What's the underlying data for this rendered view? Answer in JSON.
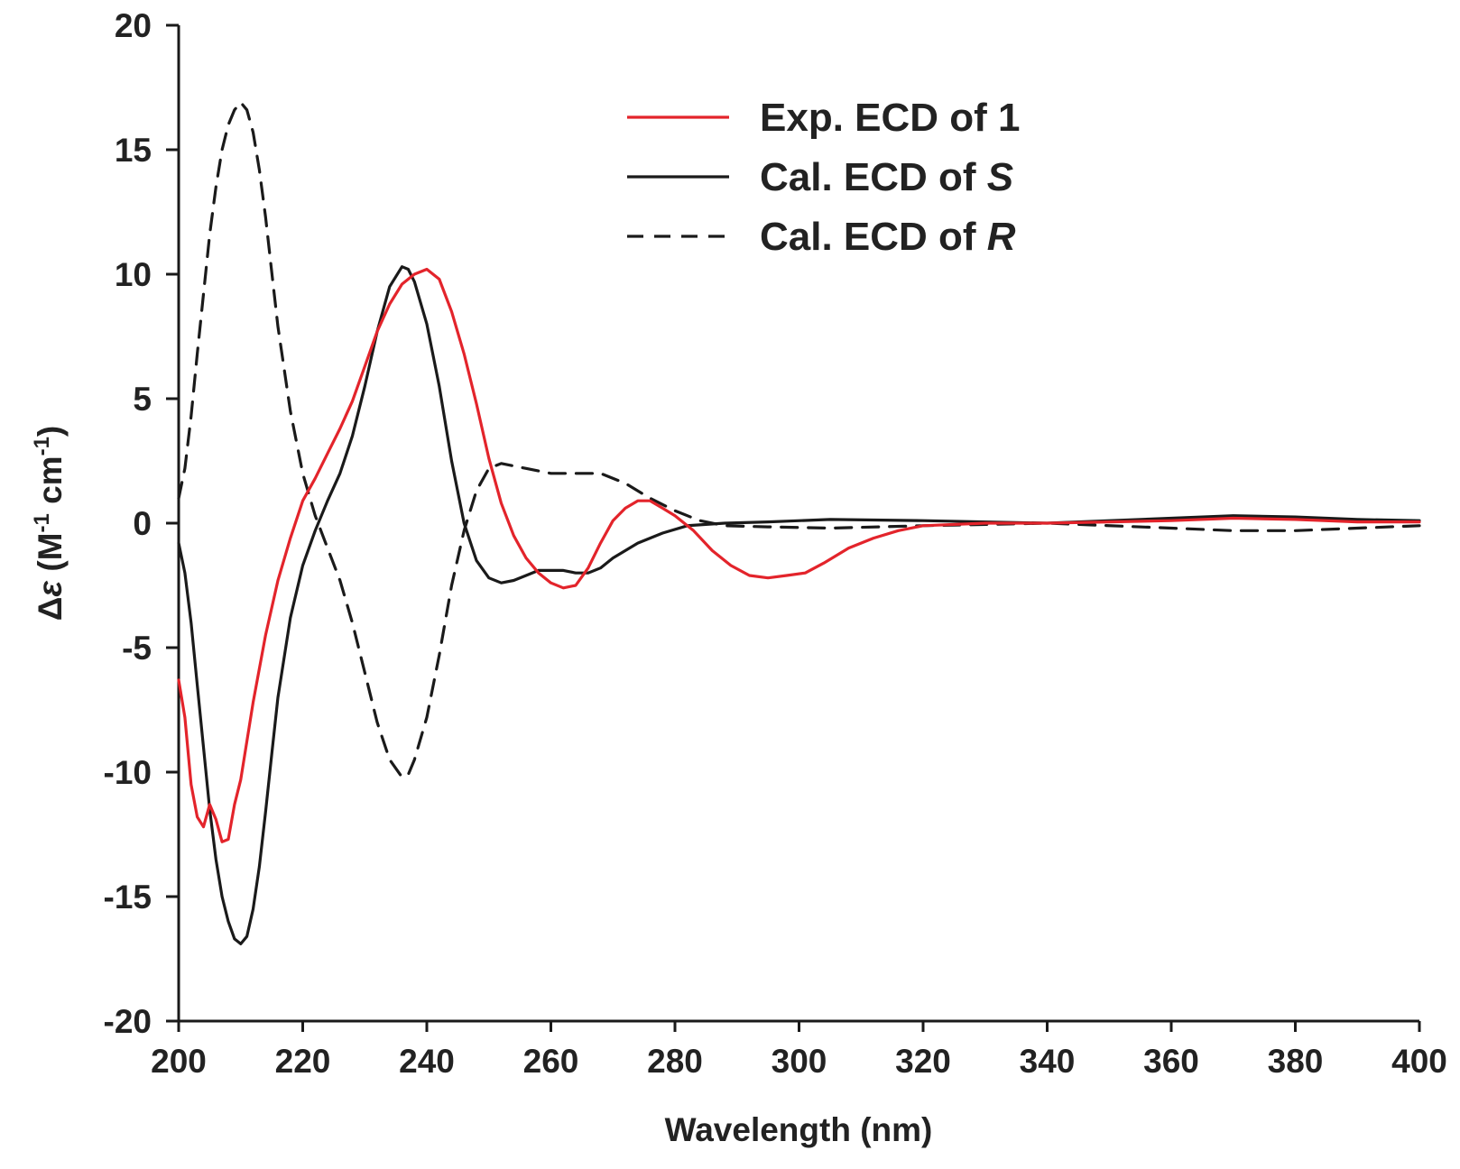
{
  "chart_data": {
    "type": "line",
    "title": "",
    "xlabel": "Wavelength (nm)",
    "ylabel": {
      "delta": "Δ",
      "epsilon": "ε",
      "open": " (M",
      "exp1": "-1",
      "mid": " cm",
      "exp2": "-1",
      "close": ")"
    },
    "xlim": [
      200,
      400
    ],
    "ylim": [
      -20,
      20
    ],
    "x_ticks": [
      "200",
      "220",
      "240",
      "260",
      "280",
      "300",
      "320",
      "340",
      "360",
      "380",
      "400"
    ],
    "y_ticks": [
      "20",
      "15",
      "10",
      "5",
      "0",
      "-5",
      "-10",
      "-15",
      "-20"
    ],
    "legend_position": "top-right",
    "series": [
      {
        "name": "Exp. ECD of 1",
        "legend": {
          "prefix": "Exp. ECD of ",
          "suffix": "1",
          "italic": false
        },
        "color": "#e3242b",
        "dash": "solid",
        "points": [
          [
            200,
            -6.3
          ],
          [
            201,
            -7.8
          ],
          [
            202,
            -10.5
          ],
          [
            203,
            -11.8
          ],
          [
            204,
            -12.2
          ],
          [
            205,
            -11.3
          ],
          [
            206,
            -11.9
          ],
          [
            207,
            -12.8
          ],
          [
            208,
            -12.7
          ],
          [
            209,
            -11.3
          ],
          [
            210,
            -10.3
          ],
          [
            212,
            -7.2
          ],
          [
            214,
            -4.5
          ],
          [
            216,
            -2.3
          ],
          [
            218,
            -0.6
          ],
          [
            220,
            0.9
          ],
          [
            222,
            1.8
          ],
          [
            224,
            2.8
          ],
          [
            226,
            3.8
          ],
          [
            228,
            4.9
          ],
          [
            230,
            6.3
          ],
          [
            232,
            7.7
          ],
          [
            234,
            8.8
          ],
          [
            236,
            9.6
          ],
          [
            238,
            10.0
          ],
          [
            240,
            10.2
          ],
          [
            242,
            9.8
          ],
          [
            244,
            8.5
          ],
          [
            246,
            6.8
          ],
          [
            248,
            4.8
          ],
          [
            250,
            2.6
          ],
          [
            252,
            0.8
          ],
          [
            254,
            -0.5
          ],
          [
            256,
            -1.4
          ],
          [
            258,
            -2.0
          ],
          [
            260,
            -2.4
          ],
          [
            262,
            -2.6
          ],
          [
            264,
            -2.5
          ],
          [
            266,
            -1.8
          ],
          [
            268,
            -0.8
          ],
          [
            270,
            0.1
          ],
          [
            272,
            0.6
          ],
          [
            274,
            0.9
          ],
          [
            276,
            0.9
          ],
          [
            278,
            0.6
          ],
          [
            280,
            0.3
          ],
          [
            283,
            -0.3
          ],
          [
            286,
            -1.1
          ],
          [
            289,
            -1.7
          ],
          [
            292,
            -2.1
          ],
          [
            295,
            -2.2
          ],
          [
            298,
            -2.1
          ],
          [
            301,
            -2.0
          ],
          [
            304,
            -1.6
          ],
          [
            308,
            -1.0
          ],
          [
            312,
            -0.6
          ],
          [
            316,
            -0.3
          ],
          [
            320,
            -0.1
          ],
          [
            330,
            0.0
          ],
          [
            340,
            0.0
          ],
          [
            350,
            0.05
          ],
          [
            360,
            0.1
          ],
          [
            370,
            0.2
          ],
          [
            380,
            0.15
          ],
          [
            390,
            0.05
          ],
          [
            400,
            0.05
          ]
        ]
      },
      {
        "name": "Cal. ECD of S",
        "legend": {
          "prefix": "Cal. ECD of ",
          "suffix": "S",
          "italic": true
        },
        "color": "#1a1a1a",
        "dash": "solid",
        "points": [
          [
            200,
            -0.8
          ],
          [
            201,
            -2.0
          ],
          [
            202,
            -4.0
          ],
          [
            203,
            -6.5
          ],
          [
            204,
            -9.0
          ],
          [
            205,
            -11.5
          ],
          [
            206,
            -13.5
          ],
          [
            207,
            -15.0
          ],
          [
            208,
            -16.0
          ],
          [
            209,
            -16.7
          ],
          [
            210,
            -16.9
          ],
          [
            211,
            -16.6
          ],
          [
            212,
            -15.5
          ],
          [
            213,
            -13.8
          ],
          [
            214,
            -11.6
          ],
          [
            215,
            -9.3
          ],
          [
            216,
            -7.0
          ],
          [
            218,
            -3.8
          ],
          [
            220,
            -1.7
          ],
          [
            222,
            -0.3
          ],
          [
            224,
            0.9
          ],
          [
            226,
            2.0
          ],
          [
            228,
            3.5
          ],
          [
            230,
            5.5
          ],
          [
            232,
            7.7
          ],
          [
            234,
            9.5
          ],
          [
            236,
            10.3
          ],
          [
            237,
            10.2
          ],
          [
            238,
            9.7
          ],
          [
            240,
            8.0
          ],
          [
            242,
            5.5
          ],
          [
            244,
            2.5
          ],
          [
            246,
            0.0
          ],
          [
            248,
            -1.5
          ],
          [
            250,
            -2.2
          ],
          [
            252,
            -2.4
          ],
          [
            254,
            -2.3
          ],
          [
            256,
            -2.1
          ],
          [
            258,
            -1.9
          ],
          [
            260,
            -1.9
          ],
          [
            262,
            -1.9
          ],
          [
            264,
            -2.0
          ],
          [
            266,
            -2.0
          ],
          [
            268,
            -1.8
          ],
          [
            270,
            -1.4
          ],
          [
            274,
            -0.8
          ],
          [
            278,
            -0.4
          ],
          [
            282,
            -0.1
          ],
          [
            288,
            0.0
          ],
          [
            295,
            0.05
          ],
          [
            305,
            0.15
          ],
          [
            320,
            0.1
          ],
          [
            340,
            0.0
          ],
          [
            360,
            0.2
          ],
          [
            370,
            0.3
          ],
          [
            380,
            0.25
          ],
          [
            390,
            0.15
          ],
          [
            400,
            0.1
          ]
        ]
      },
      {
        "name": "Cal. ECD of R",
        "legend": {
          "prefix": "Cal. ECD of ",
          "suffix": "R",
          "italic": true
        },
        "color": "#1a1a1a",
        "dash": "dashed",
        "points": [
          [
            200,
            1.0
          ],
          [
            201,
            2.2
          ],
          [
            202,
            4.3
          ],
          [
            203,
            6.8
          ],
          [
            204,
            9.2
          ],
          [
            205,
            11.6
          ],
          [
            206,
            13.5
          ],
          [
            207,
            15.0
          ],
          [
            208,
            16.0
          ],
          [
            209,
            16.6
          ],
          [
            210,
            16.9
          ],
          [
            211,
            16.6
          ],
          [
            212,
            15.7
          ],
          [
            213,
            14.2
          ],
          [
            214,
            12.3
          ],
          [
            215,
            10.1
          ],
          [
            216,
            7.9
          ],
          [
            218,
            4.5
          ],
          [
            220,
            2.0
          ],
          [
            222,
            0.3
          ],
          [
            224,
            -1.0
          ],
          [
            226,
            -2.3
          ],
          [
            228,
            -4.0
          ],
          [
            230,
            -6.0
          ],
          [
            232,
            -8.0
          ],
          [
            234,
            -9.5
          ],
          [
            236,
            -10.2
          ],
          [
            237,
            -10.1
          ],
          [
            238,
            -9.5
          ],
          [
            240,
            -7.8
          ],
          [
            242,
            -5.3
          ],
          [
            244,
            -2.5
          ],
          [
            246,
            -0.3
          ],
          [
            248,
            1.3
          ],
          [
            250,
            2.2
          ],
          [
            252,
            2.4
          ],
          [
            256,
            2.2
          ],
          [
            260,
            2.0
          ],
          [
            264,
            2.0
          ],
          [
            268,
            2.0
          ],
          [
            272,
            1.6
          ],
          [
            276,
            1.0
          ],
          [
            280,
            0.5
          ],
          [
            284,
            0.1
          ],
          [
            288,
            -0.1
          ],
          [
            295,
            -0.15
          ],
          [
            305,
            -0.2
          ],
          [
            320,
            -0.1
          ],
          [
            340,
            0.0
          ],
          [
            360,
            -0.2
          ],
          [
            370,
            -0.3
          ],
          [
            380,
            -0.3
          ],
          [
            390,
            -0.2
          ],
          [
            400,
            -0.1
          ]
        ]
      }
    ]
  }
}
